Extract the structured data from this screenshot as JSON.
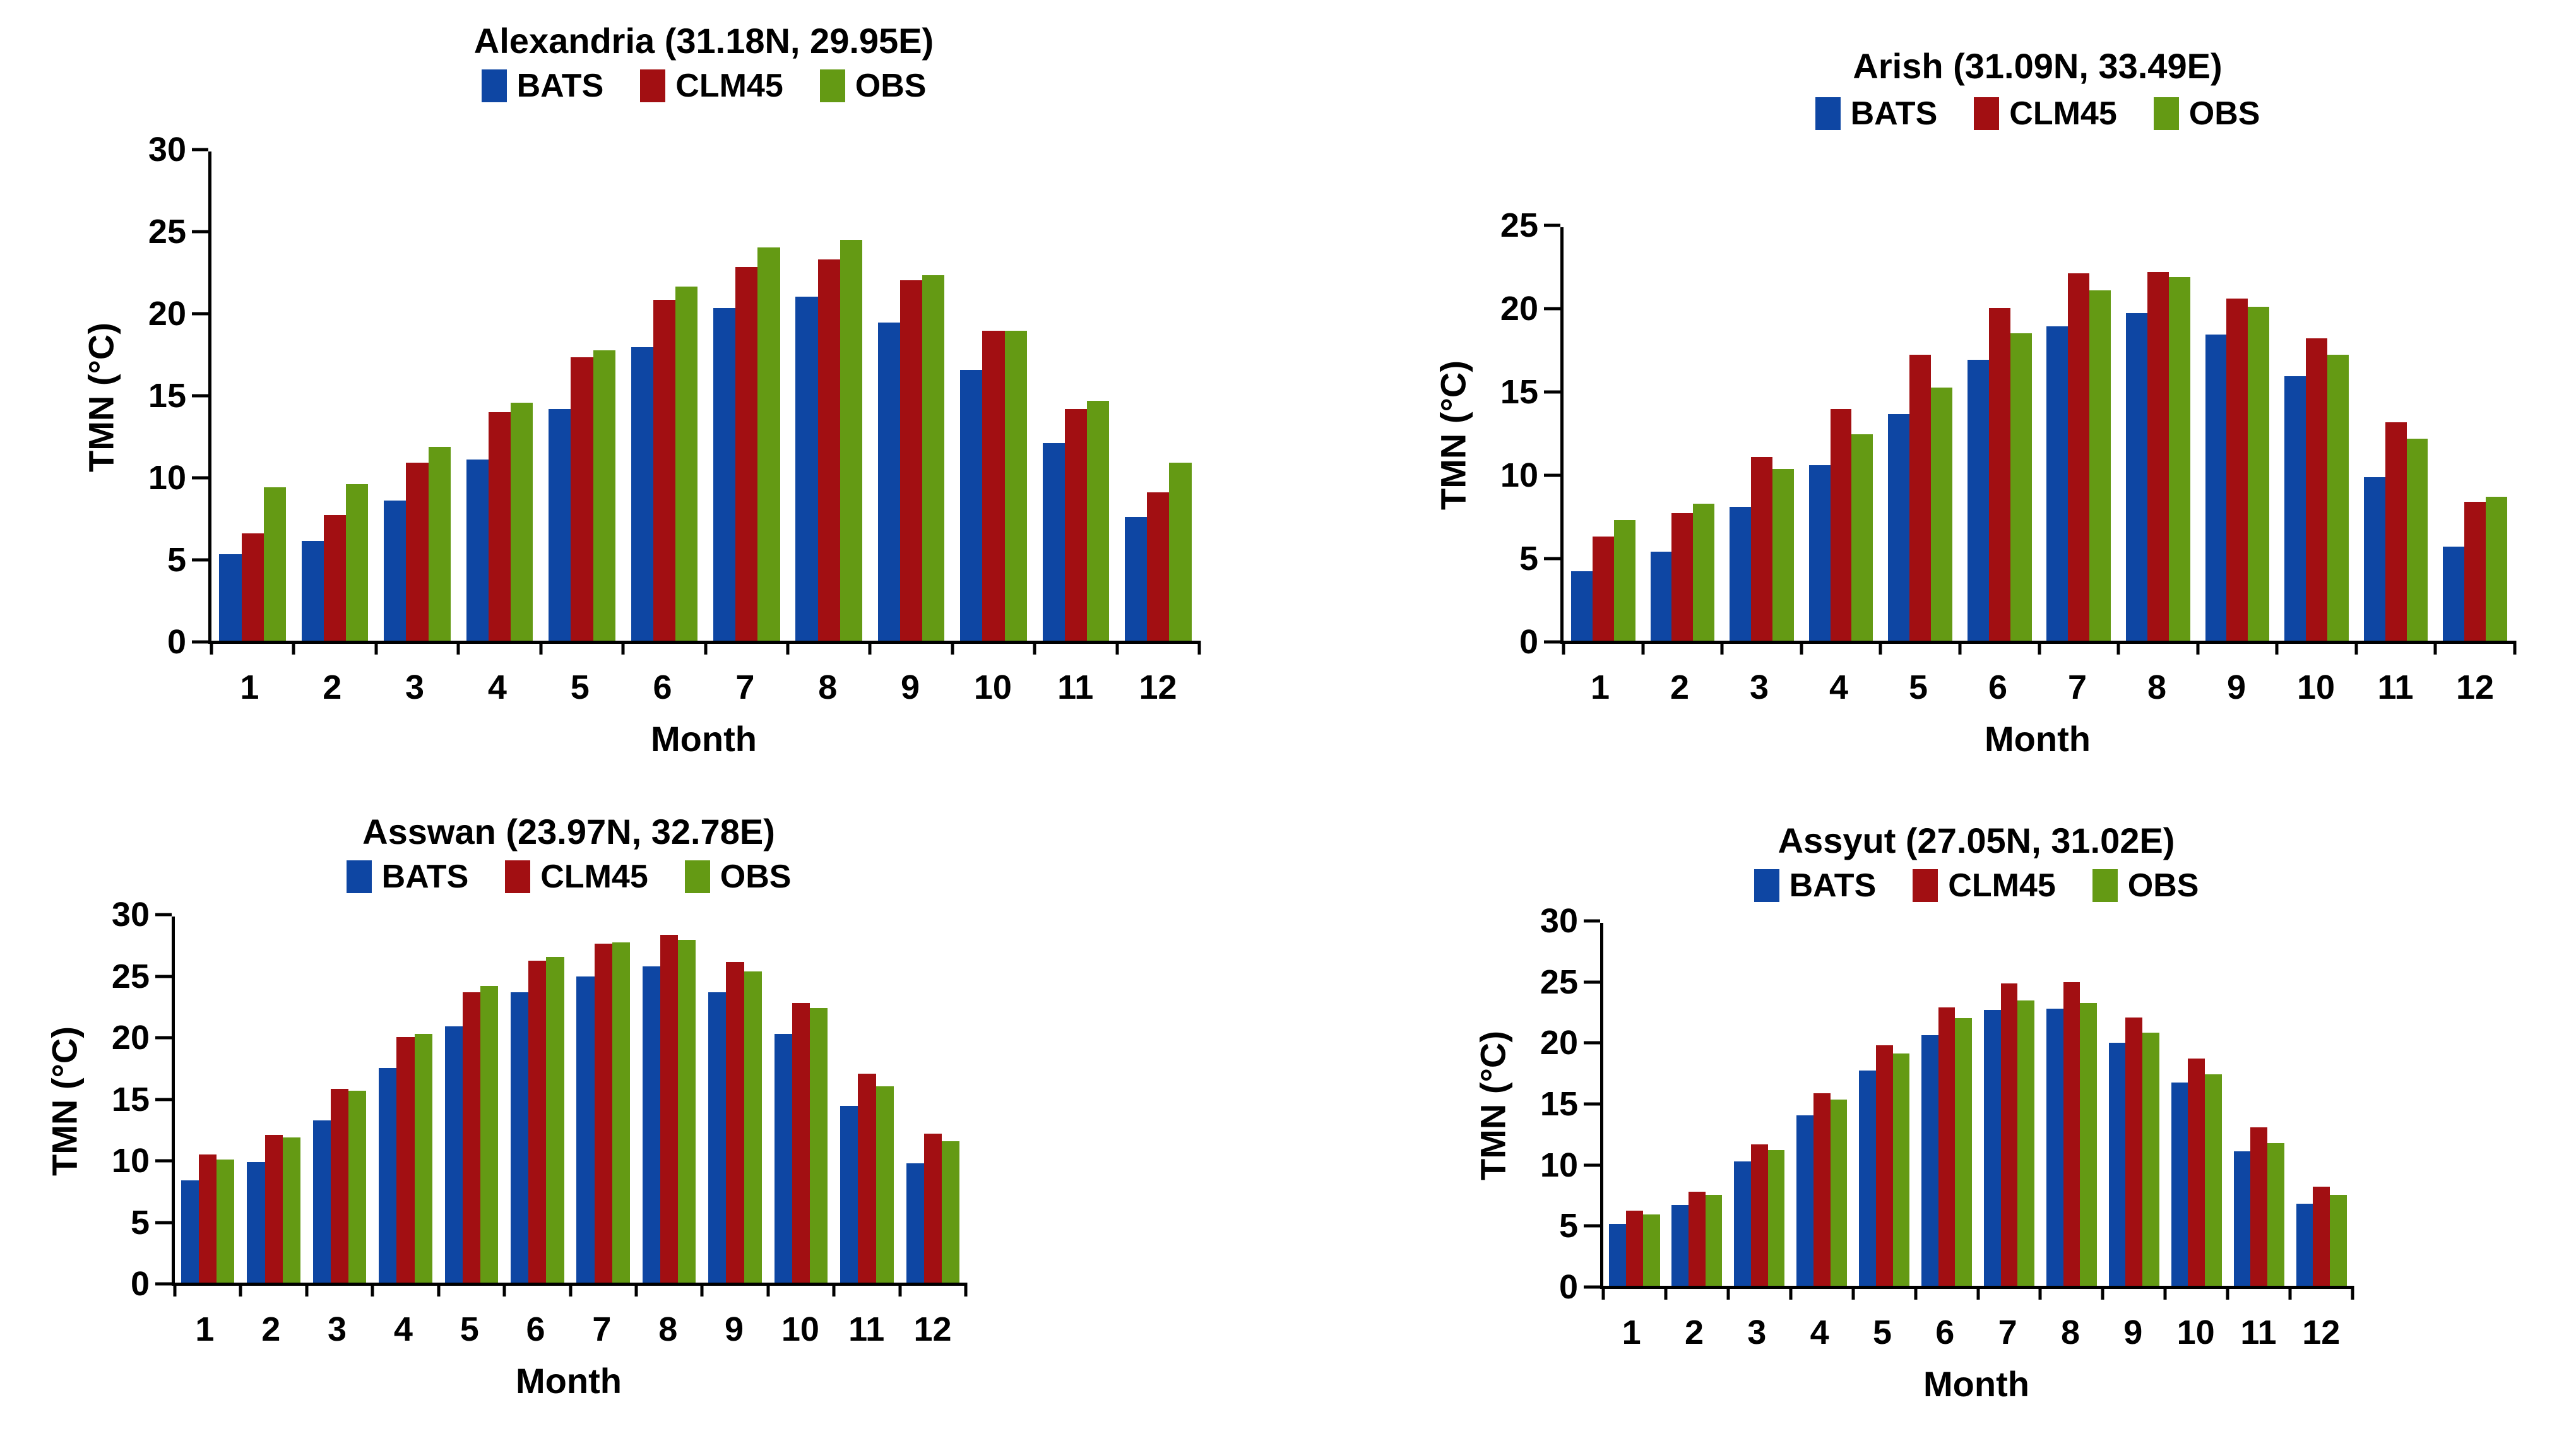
{
  "ui": {
    "background": "#ffffff",
    "axis_color": "#000000",
    "text_color": "#000000",
    "series_colors": {
      "BATS": "#0E46A3",
      "CLM45": "#A20F12",
      "OBS": "#649A14"
    }
  },
  "chart_data": [
    {
      "type": "bar",
      "title": "Alexandria (31.18N, 29.95E)",
      "xlabel": "Month",
      "ylabel": "TMN (°C)",
      "ylim": [
        0,
        30
      ],
      "ytick_step": 5,
      "grid": false,
      "legend_position": "top",
      "categories": [
        "1",
        "2",
        "3",
        "4",
        "5",
        "6",
        "7",
        "8",
        "9",
        "10",
        "11",
        "12"
      ],
      "series": [
        {
          "name": "BATS",
          "color": "#0E46A3",
          "values": [
            5.3,
            6.1,
            8.6,
            11.1,
            14.2,
            18.0,
            20.4,
            21.1,
            19.5,
            16.6,
            12.1,
            7.6
          ]
        },
        {
          "name": "CLM45",
          "color": "#A20F12",
          "values": [
            6.6,
            7.7,
            10.9,
            14.0,
            17.4,
            20.9,
            22.9,
            23.4,
            22.1,
            19.0,
            14.2,
            9.1
          ]
        },
        {
          "name": "OBS",
          "color": "#649A14",
          "values": [
            9.4,
            9.6,
            11.9,
            14.6,
            17.8,
            21.7,
            24.1,
            24.6,
            22.4,
            19.0,
            14.7,
            10.9
          ]
        }
      ]
    },
    {
      "type": "bar",
      "title": "Arish (31.09N, 33.49E)",
      "xlabel": "Month",
      "ylabel": "TMN (°C)",
      "ylim": [
        0,
        25
      ],
      "ytick_step": 5,
      "grid": false,
      "legend_position": "top",
      "categories": [
        "1",
        "2",
        "3",
        "4",
        "5",
        "6",
        "7",
        "8",
        "9",
        "10",
        "11",
        "12"
      ],
      "series": [
        {
          "name": "BATS",
          "color": "#0E46A3",
          "values": [
            4.2,
            5.4,
            8.1,
            10.6,
            13.7,
            17.0,
            19.0,
            19.8,
            18.5,
            16.0,
            9.9,
            5.7
          ]
        },
        {
          "name": "CLM45",
          "color": "#A20F12",
          "values": [
            6.3,
            7.7,
            11.1,
            14.0,
            17.3,
            20.1,
            22.2,
            22.3,
            20.7,
            18.3,
            13.2,
            8.4
          ]
        },
        {
          "name": "OBS",
          "color": "#649A14",
          "values": [
            7.3,
            8.3,
            10.4,
            12.5,
            15.3,
            18.6,
            21.2,
            22.0,
            20.2,
            17.3,
            12.2,
            8.7
          ]
        }
      ]
    },
    {
      "type": "bar",
      "title": "Asswan (23.97N, 32.78E)",
      "xlabel": "Month",
      "ylabel": "TMN (°C)",
      "ylim": [
        0,
        30
      ],
      "ytick_step": 5,
      "grid": false,
      "legend_position": "top",
      "categories": [
        "1",
        "2",
        "3",
        "4",
        "5",
        "6",
        "7",
        "8",
        "9",
        "10",
        "11",
        "12"
      ],
      "series": [
        {
          "name": "BATS",
          "color": "#0E46A3",
          "values": [
            8.4,
            9.9,
            13.3,
            17.6,
            21.0,
            23.8,
            25.1,
            25.9,
            23.8,
            20.4,
            14.5,
            9.8
          ]
        },
        {
          "name": "CLM45",
          "color": "#A20F12",
          "values": [
            10.5,
            12.1,
            15.9,
            20.1,
            23.8,
            26.4,
            27.8,
            28.5,
            26.3,
            22.9,
            17.1,
            12.2
          ]
        },
        {
          "name": "OBS",
          "color": "#649A14",
          "values": [
            10.1,
            11.9,
            15.7,
            20.4,
            24.3,
            26.7,
            27.9,
            28.1,
            25.5,
            22.5,
            16.1,
            11.6
          ]
        }
      ]
    },
    {
      "type": "bar",
      "title": "Assyut (27.05N, 31.02E)",
      "xlabel": "Month",
      "ylabel": "TMN (°C)",
      "ylim": [
        0,
        30
      ],
      "ytick_step": 5,
      "grid": false,
      "legend_position": "top",
      "categories": [
        "1",
        "2",
        "3",
        "4",
        "5",
        "6",
        "7",
        "8",
        "9",
        "10",
        "11",
        "12"
      ],
      "series": [
        {
          "name": "BATS",
          "color": "#0E46A3",
          "values": [
            5.1,
            6.7,
            10.3,
            14.1,
            17.8,
            20.7,
            22.8,
            22.9,
            20.1,
            16.8,
            11.1,
            6.8
          ]
        },
        {
          "name": "CLM45",
          "color": "#A20F12",
          "values": [
            6.2,
            7.8,
            11.7,
            15.9,
            19.9,
            23.0,
            25.0,
            25.1,
            22.2,
            18.8,
            13.1,
            8.2
          ]
        },
        {
          "name": "OBS",
          "color": "#649A14",
          "values": [
            5.9,
            7.5,
            11.2,
            15.4,
            19.2,
            22.1,
            23.6,
            23.4,
            20.9,
            17.5,
            11.8,
            7.5
          ]
        }
      ]
    }
  ]
}
